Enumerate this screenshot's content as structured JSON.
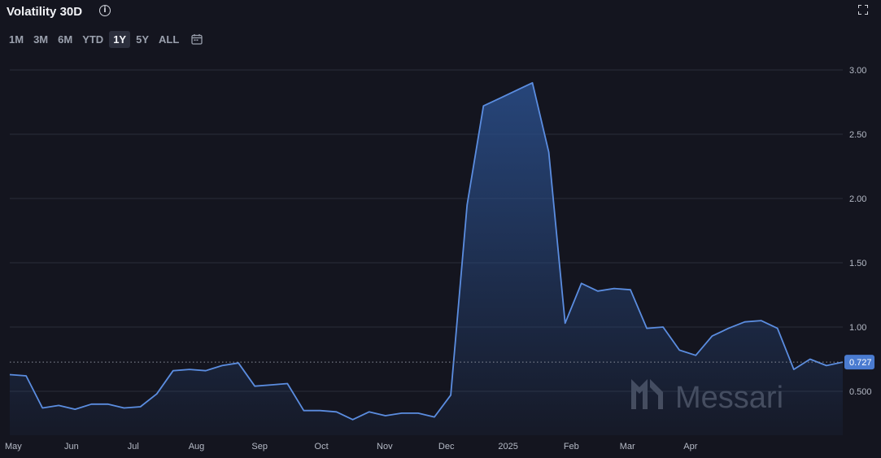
{
  "header": {
    "title": "Volatility 30D"
  },
  "ranges": [
    {
      "label": "1M",
      "active": false
    },
    {
      "label": "3M",
      "active": false
    },
    {
      "label": "6M",
      "active": false
    },
    {
      "label": "YTD",
      "active": false
    },
    {
      "label": "1Y",
      "active": true
    },
    {
      "label": "5Y",
      "active": false
    },
    {
      "label": "ALL",
      "active": false
    }
  ],
  "watermark": "Messari",
  "colors": {
    "line": "#5b8de0",
    "fill_top": "#2a4e8a",
    "grid": "#2a2d38",
    "badge": "#4a7bd0",
    "background": "#14151f"
  },
  "chart_data": {
    "type": "area",
    "title": "Volatility 30D",
    "ylim": [
      0.22,
      3.0
    ],
    "yticks": [
      {
        "value": 3.0,
        "label": "3.00"
      },
      {
        "value": 2.5,
        "label": "2.50"
      },
      {
        "value": 2.0,
        "label": "2.00"
      },
      {
        "value": 1.5,
        "label": "1.50"
      },
      {
        "value": 1.0,
        "label": "1.00"
      },
      {
        "value": 0.5,
        "label": "0.500"
      }
    ],
    "xlim": [
      0,
      58
    ],
    "xticks": [
      {
        "x": 0,
        "label": "May"
      },
      {
        "x": 4.3,
        "label": "Jun"
      },
      {
        "x": 8.6,
        "label": "Jul"
      },
      {
        "x": 13.0,
        "label": "Aug"
      },
      {
        "x": 17.4,
        "label": "Sep"
      },
      {
        "x": 21.7,
        "label": "Oct"
      },
      {
        "x": 26.1,
        "label": "Nov"
      },
      {
        "x": 30.4,
        "label": "Dec"
      },
      {
        "x": 34.7,
        "label": "2025"
      },
      {
        "x": 39.1,
        "label": "Feb"
      },
      {
        "x": 43.0,
        "label": "Mar"
      },
      {
        "x": 47.4,
        "label": "Apr"
      }
    ],
    "series": [
      {
        "values": [
          0.63,
          0.62,
          0.37,
          0.39,
          0.36,
          0.4,
          0.4,
          0.37,
          0.38,
          0.48,
          0.66,
          0.67,
          0.66,
          0.7,
          0.72,
          0.54,
          0.55,
          0.56,
          0.35,
          0.35,
          0.34,
          0.28,
          0.34,
          0.31,
          0.33,
          0.33,
          0.3,
          0.47,
          1.95,
          2.72,
          2.78,
          2.84,
          2.9,
          2.36,
          1.03,
          1.34,
          1.28,
          1.3,
          1.29,
          0.99,
          1.0,
          0.82,
          0.78,
          0.93,
          0.99,
          1.04,
          1.05,
          0.99,
          0.67,
          0.75,
          0.7,
          0.727
        ]
      }
    ],
    "last_value": {
      "value": 0.727,
      "label": "0.727"
    }
  }
}
